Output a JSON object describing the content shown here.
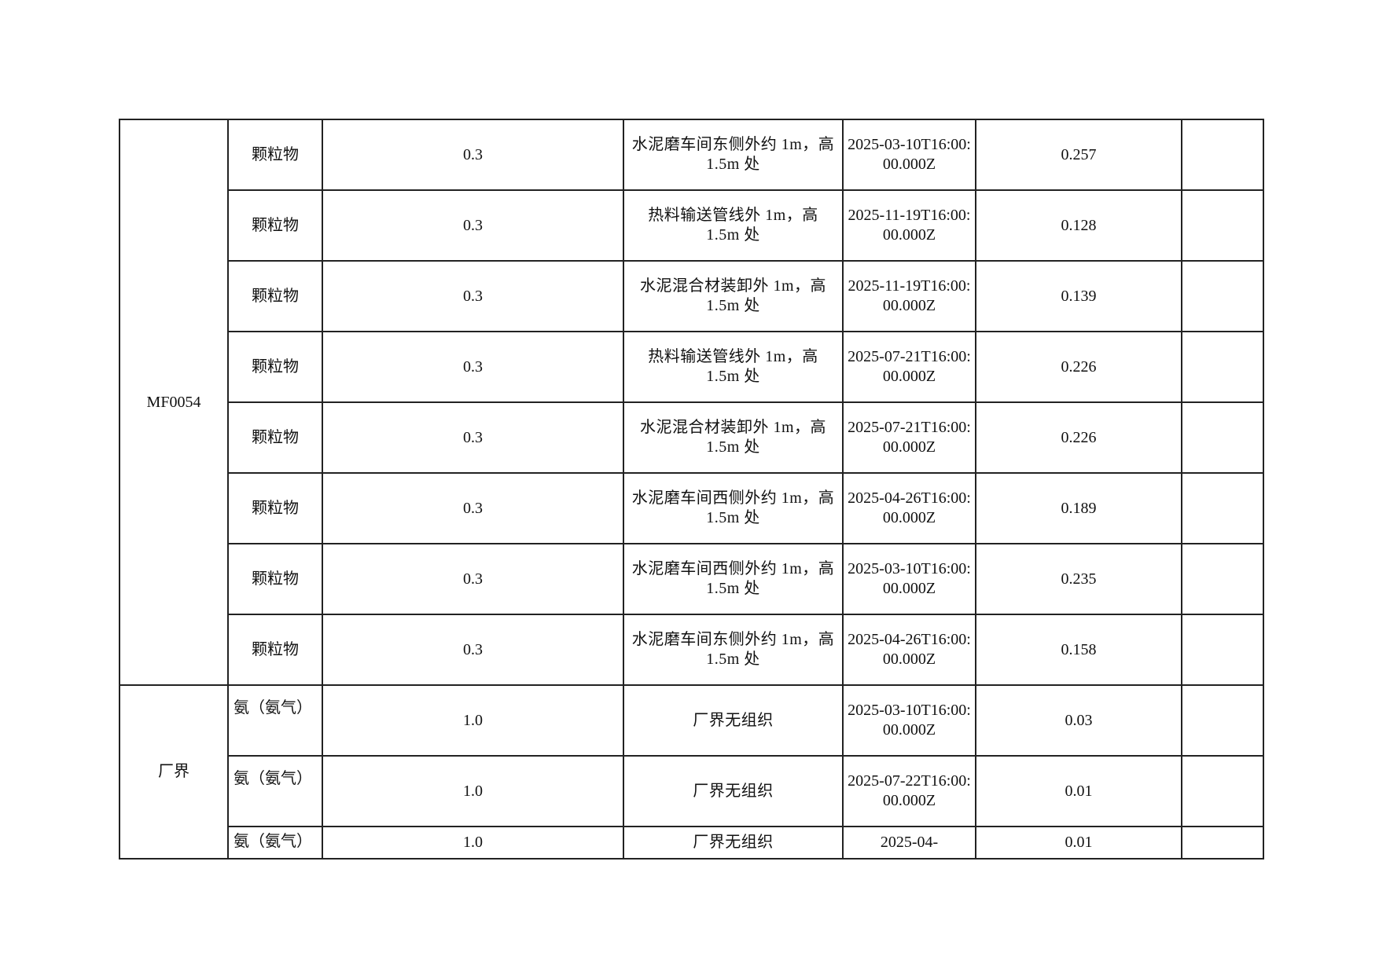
{
  "groups": [
    {
      "name": "MF0054",
      "rows": [
        {
          "pollutant": "颗粒物",
          "limit": "0.3",
          "location": "水泥磨车间东侧外约 1m，高 1.5m 处",
          "time": "2025-03-10T16:00:00.000Z",
          "value": "0.257",
          "note": ""
        },
        {
          "pollutant": "颗粒物",
          "limit": "0.3",
          "location": "热料输送管线外 1m，高 1.5m 处",
          "time": "2025-11-19T16:00:00.000Z",
          "value": "0.128",
          "note": ""
        },
        {
          "pollutant": "颗粒物",
          "limit": "0.3",
          "location": "水泥混合材装卸外 1m，高 1.5m 处",
          "time": "2025-11-19T16:00:00.000Z",
          "value": "0.139",
          "note": ""
        },
        {
          "pollutant": "颗粒物",
          "limit": "0.3",
          "location": "热料输送管线外 1m，高 1.5m 处",
          "time": "2025-07-21T16:00:00.000Z",
          "value": "0.226",
          "note": ""
        },
        {
          "pollutant": "颗粒物",
          "limit": "0.3",
          "location": "水泥混合材装卸外 1m，高 1.5m 处",
          "time": "2025-07-21T16:00:00.000Z",
          "value": "0.226",
          "note": ""
        },
        {
          "pollutant": "颗粒物",
          "limit": "0.3",
          "location": "水泥磨车间西侧外约 1m，高 1.5m 处",
          "time": "2025-04-26T16:00:00.000Z",
          "value": "0.189",
          "note": ""
        },
        {
          "pollutant": "颗粒物",
          "limit": "0.3",
          "location": "水泥磨车间西侧外约 1m，高 1.5m 处",
          "time": "2025-03-10T16:00:00.000Z",
          "value": "0.235",
          "note": ""
        },
        {
          "pollutant": "颗粒物",
          "limit": "0.3",
          "location": "水泥磨车间东侧外约 1m，高 1.5m 处",
          "time": "2025-04-26T16:00:00.000Z",
          "value": "0.158",
          "note": ""
        }
      ]
    },
    {
      "name": "厂界",
      "rows": [
        {
          "pollutant": "氨（氨气）",
          "limit": "1.0",
          "location": "厂界无组织",
          "time": "2025-03-10T16:00:00.000Z",
          "value": "0.03",
          "note": ""
        },
        {
          "pollutant": "氨（氨气）",
          "limit": "1.0",
          "location": "厂界无组织",
          "time": "2025-07-22T16:00:00.000Z",
          "value": "0.01",
          "note": ""
        },
        {
          "pollutant": "氨（氨气）",
          "limit": "1.0",
          "location": "厂界无组织",
          "time": "2025-04-",
          "value": "0.01",
          "note": ""
        }
      ]
    }
  ]
}
